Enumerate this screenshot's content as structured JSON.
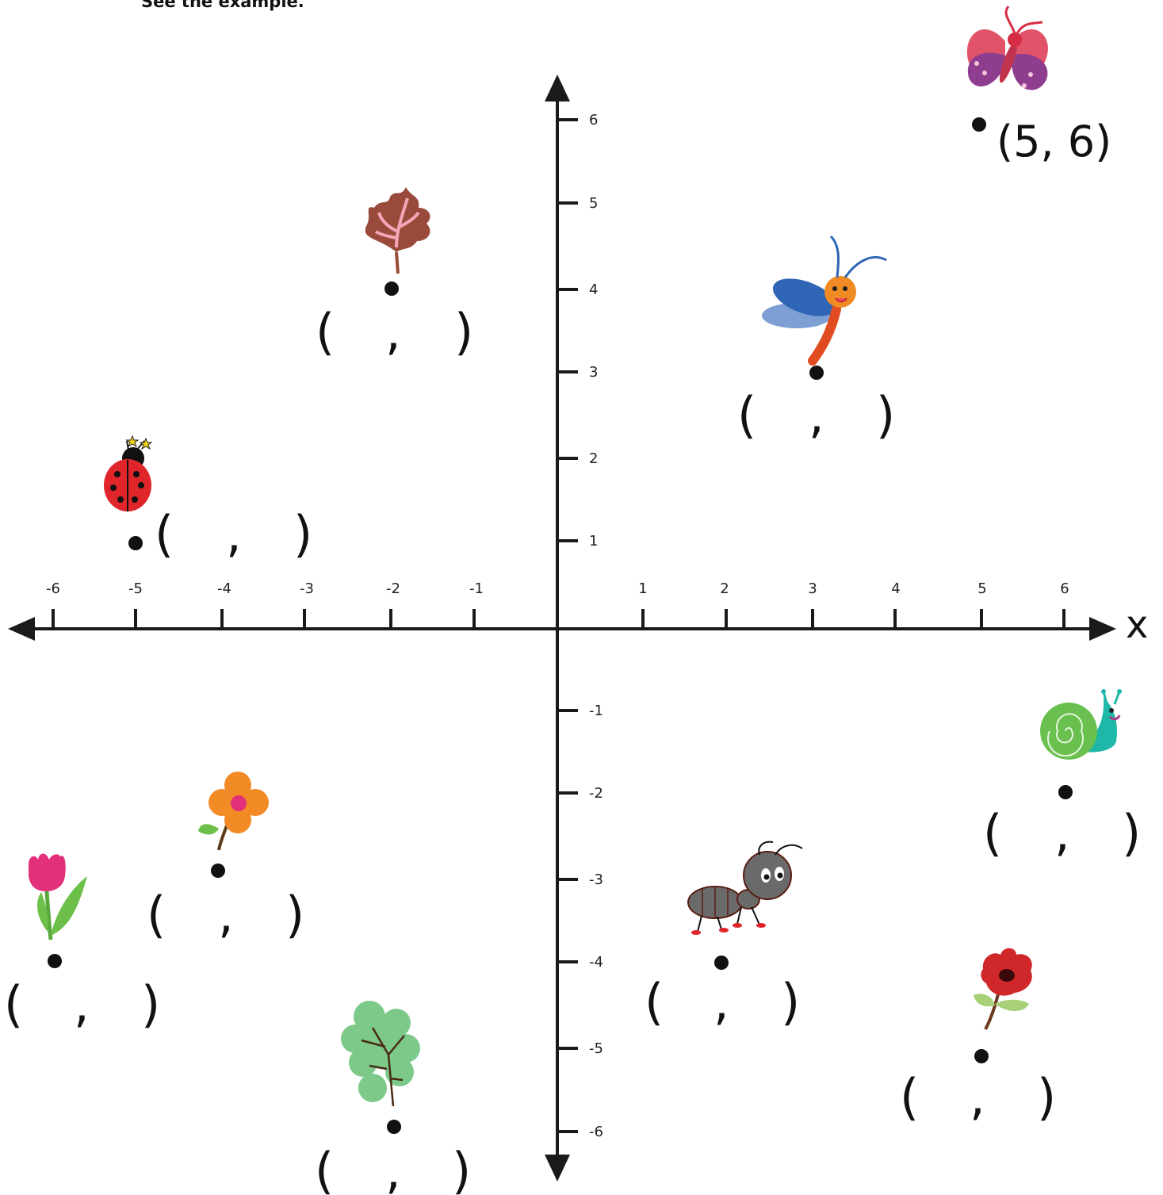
{
  "instruction": "See the example.",
  "axes": {
    "x_name": "x",
    "x_ticks": [
      "-6",
      "-5",
      "-4",
      "-3",
      "-2",
      "-1",
      "1",
      "2",
      "3",
      "4",
      "5",
      "6"
    ],
    "y_ticks": [
      "6",
      "5",
      "4",
      "3",
      "2",
      "1",
      "-1",
      "-2",
      "-3",
      "-4",
      "-5",
      "-6"
    ]
  },
  "example": {
    "label": "(5, 6)",
    "x": 5,
    "y": 6,
    "icon": "butterfly-icon"
  },
  "points": [
    {
      "name": "leaf",
      "icon": "maple-leaf-icon",
      "x": -2,
      "y": 4,
      "answer_template": "(  ,  )"
    },
    {
      "name": "dragonfly",
      "icon": "dragonfly-icon",
      "x": 3,
      "y": 3,
      "answer_template": "(  ,  )"
    },
    {
      "name": "ladybug",
      "icon": "ladybug-icon",
      "x": -5,
      "y": 1,
      "answer_template": "(  ,  )"
    },
    {
      "name": "snail",
      "icon": "snail-icon",
      "x": 6,
      "y": -2,
      "answer_template": "(  ,  )"
    },
    {
      "name": "flower",
      "icon": "orange-flower-icon",
      "x": -4,
      "y": -3,
      "answer_template": "(  ,  )"
    },
    {
      "name": "tulip",
      "icon": "tulip-icon",
      "x": -6,
      "y": -4,
      "answer_template": "(  ,  )"
    },
    {
      "name": "ant",
      "icon": "ant-icon",
      "x": 2,
      "y": -4,
      "answer_template": "(  ,  )"
    },
    {
      "name": "rose",
      "icon": "rose-icon",
      "x": 5,
      "y": -5,
      "answer_template": "(  ,  )"
    },
    {
      "name": "green-leaf",
      "icon": "green-leaf-icon",
      "x": -2,
      "y": -6,
      "answer_template": "(  ,  )"
    }
  ],
  "colors": {
    "axis": "#1a1a1a",
    "butterfly": "#c2344d",
    "leaf": "#9a4a3a",
    "dragonfly": "#2f66b6",
    "ladybug": "#e0262a",
    "snail": "#69c04f",
    "flower": "#f28a26",
    "tulip": "#e2317a",
    "ant": "#6a6a6a",
    "rose": "#d0282a",
    "green-leaf": "#7cc98a"
  }
}
